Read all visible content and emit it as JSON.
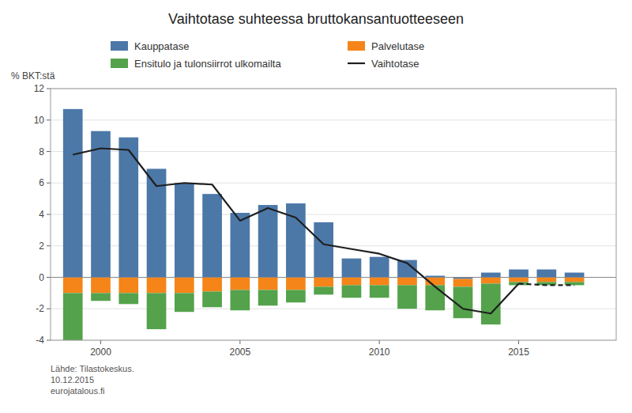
{
  "chart_data": {
    "type": "bar",
    "title": "Vaihtotase suhteessa bruttokansantuotteeseen",
    "ylabel": "% BKT:stä",
    "source": "Lähde: Tilastokeskus.\n10.12.2015\neurojatalous.fi",
    "x": [
      1999,
      2000,
      2001,
      2002,
      2003,
      2004,
      2005,
      2006,
      2007,
      2008,
      2009,
      2010,
      2011,
      2012,
      2013,
      2014,
      2015,
      2016,
      2017
    ],
    "series": [
      {
        "name": "Kauppatase",
        "type": "bar",
        "color": "#4c78a8",
        "values": [
          10.7,
          9.3,
          8.9,
          6.9,
          6.0,
          5.3,
          4.1,
          4.6,
          4.7,
          3.5,
          1.2,
          1.3,
          1.1,
          0.1,
          -0.1,
          0.3,
          0.5,
          0.5,
          0.3
        ]
      },
      {
        "name": "Palvelutase",
        "type": "bar",
        "color": "#f58518",
        "values": [
          -1.0,
          -1.0,
          -1.0,
          -1.0,
          -1.0,
          -0.9,
          -0.8,
          -0.8,
          -0.8,
          -0.6,
          -0.5,
          -0.5,
          -0.5,
          -0.5,
          -0.5,
          -0.4,
          -0.3,
          -0.3,
          -0.3
        ]
      },
      {
        "name": "Ensitulo ja tulonsiirrot ulkomailta",
        "type": "bar",
        "color": "#54a24b",
        "values": [
          -3.0,
          -0.5,
          -0.7,
          -2.3,
          -1.2,
          -1.0,
          -1.3,
          -1.0,
          -0.8,
          -0.5,
          -0.8,
          -0.8,
          -1.5,
          -1.6,
          -2.0,
          -2.6,
          -0.2,
          -0.2,
          -0.2
        ]
      },
      {
        "name": "Vaihtotase",
        "type": "line",
        "color": "#1f1f1f",
        "line_style": "solid",
        "values": [
          7.8,
          8.2,
          8.1,
          5.8,
          6.0,
          5.9,
          3.6,
          4.4,
          3.8,
          2.1,
          1.8,
          1.5,
          0.9,
          -0.6,
          -2.0,
          -2.3,
          -0.4,
          null,
          null
        ]
      },
      {
        "name": "Vaihtotase",
        "type": "line",
        "color": "#1f1f1f",
        "line_style": "dashed",
        "values": [
          null,
          null,
          null,
          null,
          null,
          null,
          null,
          null,
          null,
          null,
          null,
          null,
          null,
          null,
          null,
          null,
          -0.4,
          -0.5,
          -0.5
        ]
      }
    ],
    "stacked": true,
    "xlim": [
      1998.2,
      2018.5
    ],
    "xticks": [
      2000,
      2005,
      2010,
      2015
    ],
    "ylim": [
      -4,
      12
    ],
    "yticks": [
      -4,
      -2,
      0,
      2,
      4,
      6,
      8,
      10,
      12
    ],
    "grid": true,
    "legend": "top"
  }
}
